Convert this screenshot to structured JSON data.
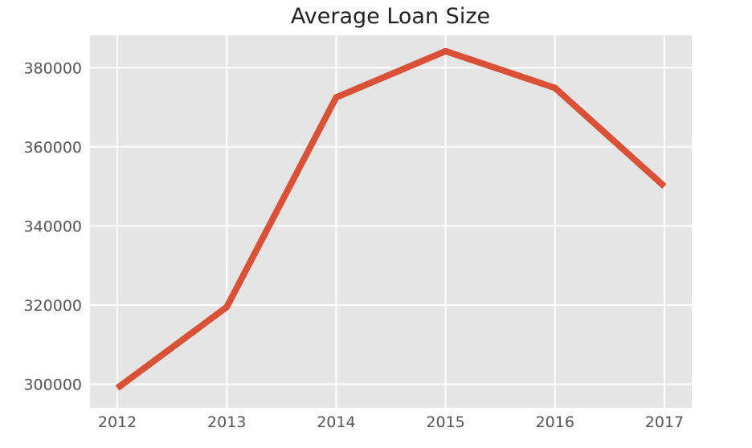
{
  "chart_data": {
    "type": "line",
    "title": "Average Loan Size",
    "xlabel": "",
    "ylabel": "",
    "x": [
      2012,
      2013,
      2014,
      2015,
      2016,
      2017
    ],
    "x_tick_labels": [
      "2012",
      "2013",
      "2014",
      "2015",
      "2016",
      "2017"
    ],
    "y_ticks": [
      300000,
      320000,
      340000,
      360000,
      380000
    ],
    "y_tick_labels": [
      "300000",
      "320000",
      "340000",
      "360000",
      "380000"
    ],
    "series": [
      {
        "values": [
          299000,
          319500,
          372500,
          384200,
          374900,
          350000
        ]
      }
    ],
    "xlim": [
      2011.75,
      2017.25
    ],
    "ylim": [
      294000,
      388200
    ],
    "grid": true,
    "legend": "none",
    "colors": {
      "line": "#d95237",
      "plot_background": "#e5e5e5",
      "grid": "#ffffff"
    }
  }
}
